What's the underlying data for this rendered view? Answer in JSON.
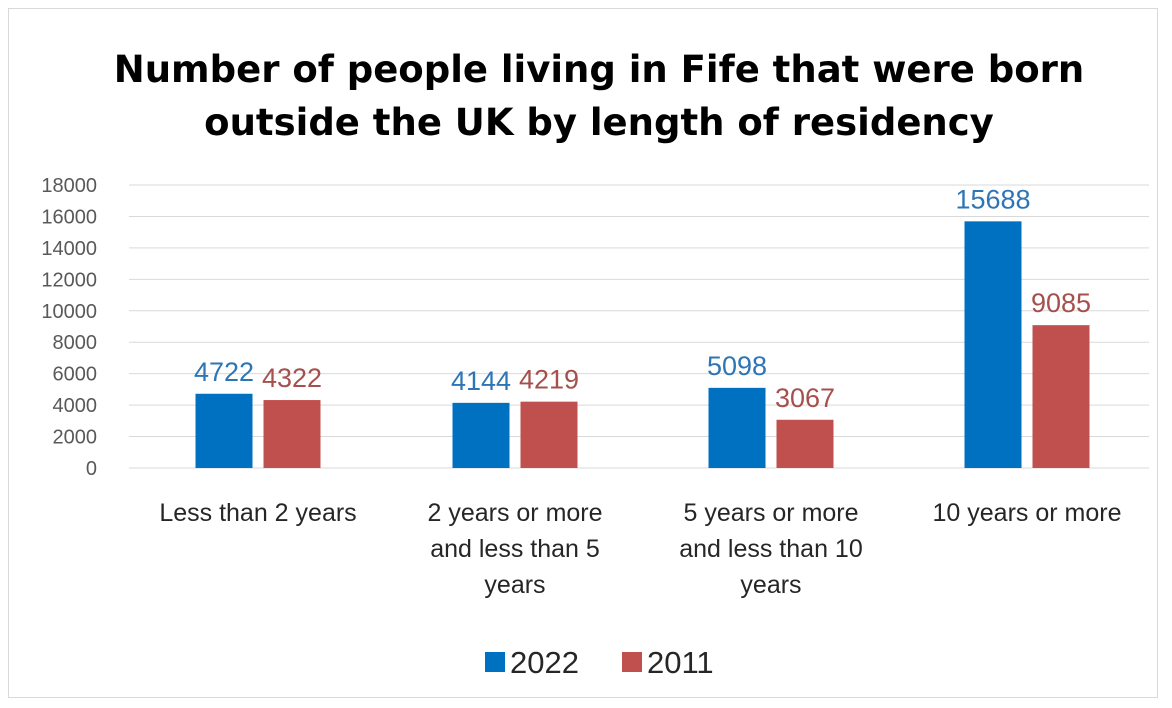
{
  "colors": {
    "2022": "#0070c0",
    "2011": "#c0504d",
    "label_2022": "#2e75b6",
    "label_2011": "#a5504d"
  },
  "chart_data": {
    "type": "bar",
    "title": [
      "Number of people living in Fife that were born",
      "outside the UK by length of residency"
    ],
    "categories": [
      [
        "Less than 2 years"
      ],
      [
        "2 years or more",
        "and less than 5",
        "years"
      ],
      [
        "5 years or more",
        "and less than 10",
        "years"
      ],
      [
        "10 years or more"
      ]
    ],
    "series": [
      {
        "name": "2022",
        "values": [
          4722,
          4144,
          5098,
          15688
        ]
      },
      {
        "name": "2011",
        "values": [
          4322,
          4219,
          3067,
          9085
        ]
      }
    ],
    "ylim": [
      0,
      18000
    ],
    "yticks": [
      0,
      2000,
      4000,
      6000,
      8000,
      10000,
      12000,
      14000,
      16000,
      18000
    ],
    "grid": true,
    "legend_position": "bottom"
  }
}
